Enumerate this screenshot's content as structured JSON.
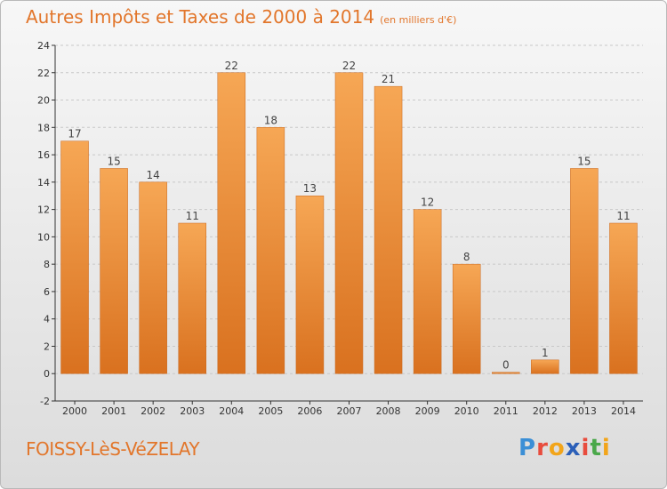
{
  "header": {
    "title": "Autres Impôts et Taxes de 2000 à 2014",
    "subtitle": "(en milliers d'€)"
  },
  "footer": {
    "place": "FOISSY-LèS-VéZELAY",
    "brand_letters": [
      "P",
      "r",
      "o",
      "x",
      "i",
      "t",
      "i"
    ],
    "brand_colors": [
      "#3b8fd6",
      "#e84c3d",
      "#f2a51a",
      "#2b5fb8",
      "#e84c3d",
      "#4aa84a",
      "#f2a51a"
    ]
  },
  "colors": {
    "bar_top": "#f6a755",
    "bar_bottom": "#d9711f",
    "text": "#e2762b",
    "axis": "#333333",
    "grid": "#c8c8c8"
  },
  "chart_data": {
    "type": "bar",
    "title": "Autres Impôts et Taxes de 2000 à 2014",
    "subtitle": "(en milliers d'€)",
    "xlabel": "",
    "ylabel": "",
    "categories": [
      "2000",
      "2001",
      "2002",
      "2003",
      "2004",
      "2005",
      "2006",
      "2007",
      "2008",
      "2009",
      "2010",
      "2011",
      "2012",
      "2013",
      "2014"
    ],
    "values": [
      17,
      15,
      14,
      11,
      22,
      18,
      13,
      22,
      21,
      12,
      8,
      0,
      1,
      15,
      11
    ],
    "ylim": [
      -2,
      24
    ],
    "yticks": [
      -2,
      0,
      2,
      4,
      6,
      8,
      10,
      12,
      14,
      16,
      18,
      20,
      22,
      24
    ],
    "grid": true,
    "legend": "none"
  }
}
